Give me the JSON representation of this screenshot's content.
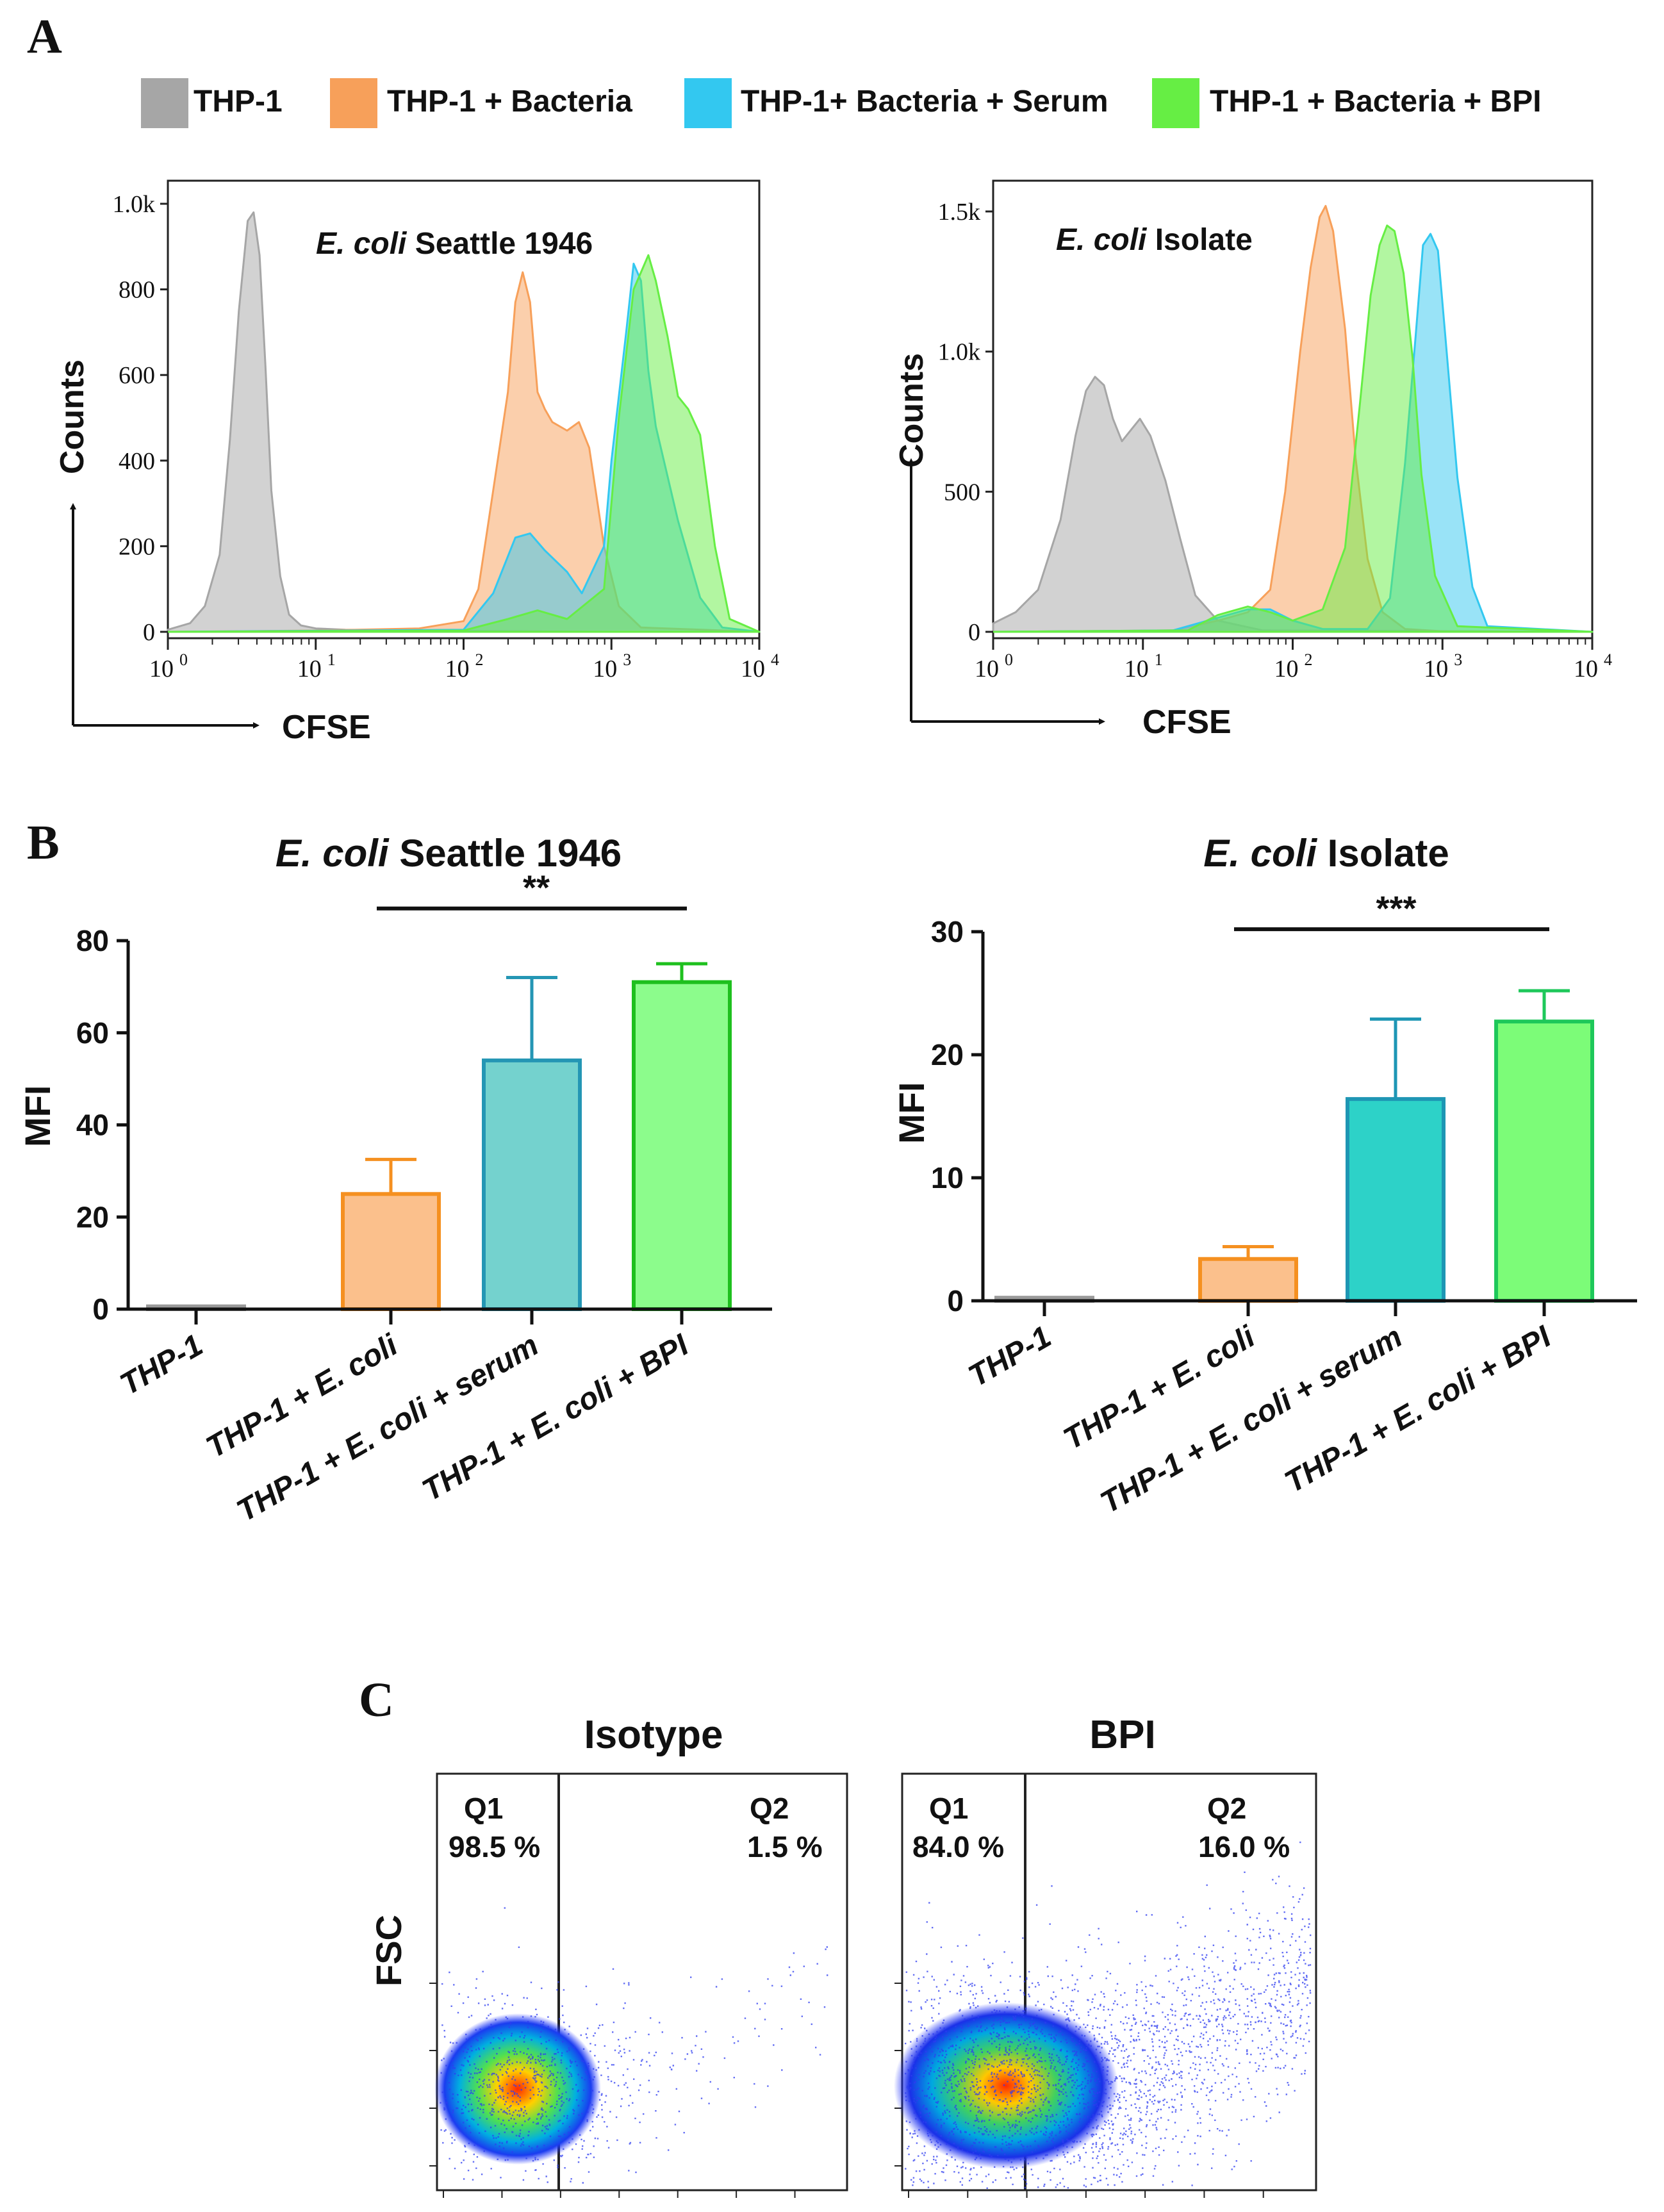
{
  "figure": {
    "panel_labels": [
      "A",
      "B",
      "C"
    ]
  },
  "legend": {
    "items": [
      {
        "label": "THP-1",
        "color": "#a6a6a6"
      },
      {
        "label": "THP-1 + Bacteria",
        "color": "#f7a05a"
      },
      {
        "label": "THP-1+ Bacteria + Serum",
        "color": "#33c8f0"
      },
      {
        "label": "THP-1 + Bacteria + BPI",
        "color": "#66ee44"
      }
    ]
  },
  "chart_data": [
    {
      "id": "A-left",
      "type": "area",
      "title_italic": "E. coli",
      "title_rest": " Seattle 1946",
      "xlabel": "CFSE",
      "ylabel": "Counts",
      "xscale": "log10",
      "xlim_exp": [
        0,
        4
      ],
      "xticks": [
        "10",
        "10",
        "10",
        "10",
        "10"
      ],
      "xtick_exps": [
        "0",
        "1",
        "2",
        "3",
        "4"
      ],
      "ylim": [
        0,
        1000
      ],
      "yticks": [
        0,
        200,
        400,
        600,
        800,
        1000
      ],
      "ytick_labels": [
        "0",
        "200",
        "400",
        "600",
        "800",
        "1.0k"
      ],
      "series": [
        {
          "name": "THP-1",
          "color": "#a6a6a6",
          "x": [
            0.0,
            0.15,
            0.25,
            0.35,
            0.42,
            0.48,
            0.54,
            0.58,
            0.62,
            0.66,
            0.7,
            0.76,
            0.82,
            0.9,
            1.0,
            1.2,
            1.5,
            2.0,
            3.0,
            4.0
          ],
          "y": [
            5,
            20,
            60,
            180,
            450,
            750,
            960,
            980,
            880,
            620,
            330,
            130,
            40,
            15,
            8,
            5,
            3,
            2,
            0,
            0
          ]
        },
        {
          "name": "THP-1 + Bacteria",
          "color": "#f7a05a",
          "x": [
            0.0,
            1.0,
            1.7,
            2.0,
            2.1,
            2.2,
            2.3,
            2.35,
            2.4,
            2.45,
            2.5,
            2.55,
            2.6,
            2.7,
            2.78,
            2.85,
            2.95,
            3.05,
            3.2,
            4.0
          ],
          "y": [
            0,
            3,
            8,
            25,
            100,
            330,
            560,
            770,
            840,
            770,
            560,
            520,
            490,
            470,
            490,
            430,
            200,
            60,
            10,
            0
          ]
        },
        {
          "name": "THP-1 + Bacteria + Serum",
          "color": "#33c8f0",
          "x": [
            0.0,
            2.0,
            2.2,
            2.35,
            2.45,
            2.55,
            2.7,
            2.8,
            2.95,
            3.0,
            3.1,
            3.15,
            3.2,
            3.25,
            3.3,
            3.45,
            3.6,
            3.75,
            4.0
          ],
          "y": [
            0,
            5,
            90,
            220,
            230,
            190,
            140,
            90,
            200,
            400,
            700,
            860,
            820,
            610,
            480,
            260,
            80,
            10,
            0
          ]
        },
        {
          "name": "THP-1 + Bacteria + BPI",
          "color": "#66ee44",
          "x": [
            0.0,
            2.0,
            2.3,
            2.5,
            2.7,
            2.95,
            3.05,
            3.15,
            3.2,
            3.25,
            3.3,
            3.38,
            3.45,
            3.52,
            3.6,
            3.7,
            3.8,
            4.0
          ],
          "y": [
            0,
            3,
            30,
            50,
            30,
            100,
            500,
            800,
            840,
            880,
            820,
            690,
            550,
            520,
            460,
            200,
            30,
            0
          ]
        }
      ]
    },
    {
      "id": "A-right",
      "type": "area",
      "title_italic": "E. coli",
      "title_rest": " Isolate",
      "xlabel": "CFSE",
      "ylabel": "Counts",
      "xscale": "log10",
      "xlim_exp": [
        0,
        4
      ],
      "xticks": [
        "10",
        "10",
        "10",
        "10",
        "10"
      ],
      "xtick_exps": [
        "0",
        "1",
        "2",
        "3",
        "4"
      ],
      "ylim": [
        0,
        1600
      ],
      "yticks": [
        0,
        500,
        1000,
        1500
      ],
      "ytick_labels": [
        "0",
        "500",
        "1.0k",
        "1.5k"
      ],
      "series": [
        {
          "name": "THP-1",
          "color": "#a6a6a6",
          "x": [
            0.0,
            0.15,
            0.3,
            0.45,
            0.55,
            0.62,
            0.68,
            0.74,
            0.8,
            0.86,
            0.92,
            0.98,
            1.05,
            1.15,
            1.25,
            1.35,
            1.5,
            1.8,
            4.0
          ],
          "y": [
            30,
            70,
            150,
            400,
            700,
            860,
            910,
            880,
            760,
            680,
            720,
            760,
            700,
            540,
            330,
            130,
            40,
            5,
            0
          ]
        },
        {
          "name": "THP-1 + Bacteria",
          "color": "#f7a05a",
          "x": [
            0.0,
            1.2,
            1.5,
            1.7,
            1.85,
            1.95,
            2.05,
            2.12,
            2.18,
            2.22,
            2.27,
            2.35,
            2.42,
            2.5,
            2.6,
            2.75,
            3.0,
            4.0
          ],
          "y": [
            0,
            5,
            40,
            70,
            150,
            500,
            1000,
            1300,
            1480,
            1520,
            1430,
            1080,
            620,
            260,
            70,
            10,
            2,
            0
          ]
        },
        {
          "name": "THP-1 + Bacteria + Serum",
          "color": "#33c8f0",
          "x": [
            0.0,
            1.2,
            1.5,
            1.7,
            1.85,
            2.0,
            2.2,
            2.5,
            2.65,
            2.75,
            2.82,
            2.87,
            2.92,
            2.97,
            3.02,
            3.1,
            3.2,
            3.3,
            4.0
          ],
          "y": [
            0,
            5,
            50,
            80,
            80,
            40,
            10,
            10,
            120,
            600,
            1050,
            1380,
            1420,
            1360,
            1050,
            550,
            160,
            20,
            0
          ]
        },
        {
          "name": "THP-1 + Bacteria + BPI",
          "color": "#66ee44",
          "x": [
            0.0,
            1.3,
            1.5,
            1.7,
            1.85,
            2.0,
            2.2,
            2.35,
            2.45,
            2.52,
            2.58,
            2.63,
            2.68,
            2.74,
            2.8,
            2.86,
            2.95,
            3.1,
            4.0
          ],
          "y": [
            0,
            5,
            60,
            90,
            70,
            40,
            80,
            300,
            820,
            1200,
            1380,
            1450,
            1430,
            1280,
            980,
            560,
            200,
            20,
            0
          ]
        }
      ]
    },
    {
      "id": "B-left",
      "type": "bar",
      "title_italic": "E. coli",
      "title_rest": " Seattle 1946",
      "ylabel": "MFI",
      "ylim": [
        0,
        80
      ],
      "yticks": [
        0,
        20,
        40,
        60,
        80
      ],
      "categories": [
        {
          "label": "THP-1",
          "pre": "THP-1",
          "ital": "",
          "post": ""
        },
        {
          "label": "THP-1 + E. coli",
          "pre": "THP-1 + ",
          "ital": "E. coli",
          "post": ""
        },
        {
          "label": "THP-1 + E. coli + serum",
          "pre": "THP-1 + ",
          "ital": "E. coli",
          "post": " + serum"
        },
        {
          "label": "THP-1 + E. coli + BPI",
          "pre": "THP-1 + ",
          "ital": "E. coli",
          "post": " + BPI"
        }
      ],
      "values": [
        0.6,
        25,
        54,
        71
      ],
      "errors": [
        0,
        7.5,
        18,
        4
      ],
      "fill_colors": [
        "#c8c8c8",
        "#fbc08c",
        "#74d2ce",
        "#8cfc8c"
      ],
      "edge_colors": [
        "#9a9a9a",
        "#f59020",
        "#2496b4",
        "#1ec01e"
      ],
      "significance": {
        "from": 1,
        "to": 3,
        "label": "**",
        "y": 87
      }
    },
    {
      "id": "B-right",
      "type": "bar",
      "title_italic": "E. coli",
      "title_rest": " Isolate",
      "ylabel": "MFI",
      "ylim": [
        0,
        30
      ],
      "yticks": [
        0,
        10,
        20,
        30
      ],
      "categories": [
        {
          "label": "THP-1",
          "pre": "THP-1",
          "ital": "",
          "post": ""
        },
        {
          "label": "THP-1 + E. coli",
          "pre": "THP-1 + ",
          "ital": "E. coli",
          "post": ""
        },
        {
          "label": "THP-1 + E. coli + serum",
          "pre": "THP-1 + ",
          "ital": "E. coli",
          "post": " + serum"
        },
        {
          "label": "THP-1 + E. coli + BPI",
          "pre": "THP-1 + ",
          "ital": "E. coli",
          "post": " + BPI"
        }
      ],
      "values": [
        0.25,
        3.4,
        16.4,
        22.7
      ],
      "errors": [
        0,
        1.0,
        6.5,
        2.5
      ],
      "fill_colors": [
        "#c8c8c8",
        "#fbc08c",
        "#2dd2c8",
        "#7cfc78"
      ],
      "edge_colors": [
        "#9a9a9a",
        "#f59020",
        "#1e96b4",
        "#1ec85a"
      ],
      "significance": {
        "from": 1,
        "to": 3,
        "label": "***",
        "y": 30.2
      }
    },
    {
      "id": "C-left",
      "type": "scatter",
      "title": "Isotype",
      "ylabel": "FSC",
      "quadrants": [
        {
          "name": "Q1",
          "percent": "98.5 %"
        },
        {
          "name": "Q2",
          "percent": "1.5 %"
        }
      ]
    },
    {
      "id": "C-right",
      "type": "scatter",
      "title": "BPI",
      "quadrants": [
        {
          "name": "Q1",
          "percent": "84.0 %"
        },
        {
          "name": "Q2",
          "percent": "16.0 %"
        }
      ]
    }
  ]
}
